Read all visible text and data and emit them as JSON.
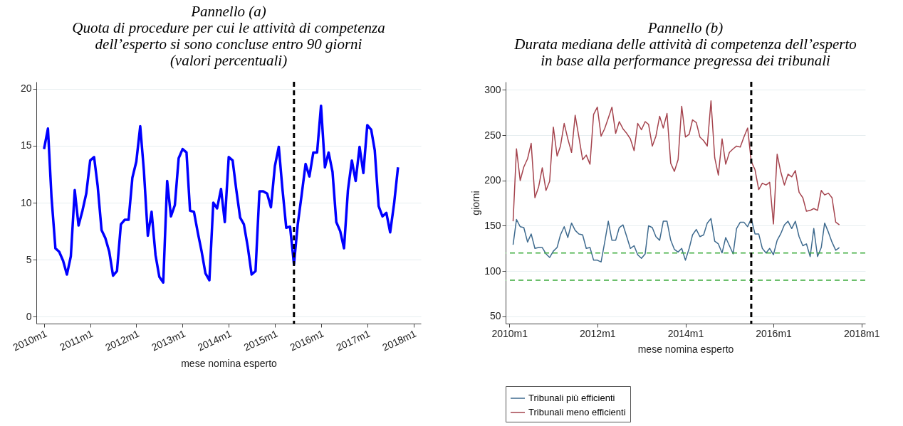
{
  "chart_data": [
    {
      "type": "line",
      "title": "Pannello (a)",
      "subtitle": "Quota di procedure per cui le attività di competenza\ndell’esperto si sono concluse entro 90 giorni\n(valori percentuali)",
      "xlabel": "mese nomina esperto",
      "x": [
        "2010-01",
        "2010-02",
        "2010-03",
        "2010-04",
        "2010-05",
        "2010-06",
        "2010-07",
        "2010-08",
        "2010-09",
        "2010-10",
        "2010-11",
        "2010-12",
        "2011-01",
        "2011-02",
        "2011-03",
        "2011-04",
        "2011-05",
        "2011-06",
        "2011-07",
        "2011-08",
        "2011-09",
        "2011-10",
        "2011-11",
        "2011-12",
        "2012-01",
        "2012-02",
        "2012-03",
        "2012-04",
        "2012-05",
        "2012-06",
        "2012-07",
        "2012-08",
        "2012-09",
        "2012-10",
        "2012-11",
        "2012-12",
        "2013-01",
        "2013-02",
        "2013-03",
        "2013-04",
        "2013-05",
        "2013-06",
        "2013-07",
        "2013-08",
        "2013-09",
        "2013-10",
        "2013-11",
        "2013-12",
        "2014-01",
        "2014-02",
        "2014-03",
        "2014-04",
        "2014-05",
        "2014-06",
        "2014-07",
        "2014-08",
        "2014-09",
        "2014-10",
        "2014-11",
        "2014-12",
        "2015-01",
        "2015-02",
        "2015-03",
        "2015-04",
        "2015-05",
        "2015-06",
        "2015-07",
        "2015-08",
        "2015-09",
        "2015-10",
        "2015-11",
        "2015-12",
        "2016-01",
        "2016-02",
        "2016-03",
        "2016-04",
        "2016-05",
        "2016-06",
        "2016-07",
        "2016-08",
        "2016-09",
        "2016-10",
        "2016-11",
        "2016-12",
        "2017-01",
        "2017-02",
        "2017-03",
        "2017-04",
        "2017-05",
        "2017-06",
        "2017-07",
        "2017-08",
        "2017-09"
      ],
      "series": [
        {
          "color": "#0000ff",
          "values": [
            14.7,
            16.5,
            10.5,
            6.0,
            5.7,
            4.9,
            3.7,
            5.3,
            11.1,
            8.0,
            9.3,
            10.8,
            13.7,
            14.0,
            11.5,
            7.6,
            6.9,
            5.7,
            3.6,
            4.0,
            8.1,
            8.5,
            8.5,
            12.2,
            13.6,
            16.7,
            12.8,
            7.1,
            9.2,
            5.4,
            3.5,
            3.0,
            11.9,
            8.8,
            9.8,
            13.9,
            14.7,
            14.4,
            9.3,
            9.2,
            7.4,
            5.7,
            3.8,
            3.2,
            10.0,
            9.5,
            11.2,
            8.3,
            14.0,
            13.7,
            11.2,
            8.7,
            8.1,
            6.1,
            3.7,
            4.0,
            11.0,
            11.0,
            10.8,
            9.6,
            13.2,
            14.9,
            11.3,
            7.8,
            7.9,
            4.6,
            8.1,
            10.7,
            13.4,
            12.3,
            14.4,
            14.4,
            18.5,
            13.1,
            14.4,
            12.7,
            8.3,
            7.5,
            6.0,
            11.1,
            13.7,
            11.9,
            14.9,
            12.6,
            16.8,
            16.4,
            14.6,
            9.7,
            8.8,
            9.1,
            7.4,
            9.9,
            13.1
          ]
        }
      ],
      "xlim": [
        "2009-11",
        "2018-03"
      ],
      "xticks": [
        {
          "value": "2010-01",
          "label": "2010m1"
        },
        {
          "value": "2011-01",
          "label": "2011m1"
        },
        {
          "value": "2012-01",
          "label": "2012m1"
        },
        {
          "value": "2013-01",
          "label": "2013m1"
        },
        {
          "value": "2014-01",
          "label": "2014m1"
        },
        {
          "value": "2015-01",
          "label": "2015m1"
        },
        {
          "value": "2016-01",
          "label": "2016m1"
        },
        {
          "value": "2017-01",
          "label": "2017m1"
        },
        {
          "value": "2018-01",
          "label": "2018m1"
        }
      ],
      "ylim": [
        -0.6,
        20.6
      ],
      "yticks": [
        0,
        5,
        10,
        15,
        20
      ],
      "grid": "y",
      "ref_lines": [
        {
          "axis": "x",
          "value": "2015-06",
          "color": "#000000",
          "line_style": "dashed"
        }
      ]
    },
    {
      "type": "line",
      "title": "Pannello (b)",
      "subtitle": "Durata mediana delle attività di competenza dell’esperto\nin base alla performance pregressa dei tribunali",
      "xlabel": "mese nomina esperto",
      "ylabel": "giorni",
      "x": [
        "2010-02",
        "2010-03",
        "2010-04",
        "2010-05",
        "2010-06",
        "2010-07",
        "2010-08",
        "2010-09",
        "2010-10",
        "2010-11",
        "2010-12",
        "2011-01",
        "2011-02",
        "2011-03",
        "2011-04",
        "2011-05",
        "2011-06",
        "2011-07",
        "2011-08",
        "2011-09",
        "2011-10",
        "2011-11",
        "2011-12",
        "2012-01",
        "2012-02",
        "2012-03",
        "2012-04",
        "2012-05",
        "2012-06",
        "2012-07",
        "2012-08",
        "2012-09",
        "2012-10",
        "2012-11",
        "2012-12",
        "2013-01",
        "2013-02",
        "2013-03",
        "2013-04",
        "2013-05",
        "2013-06",
        "2013-07",
        "2013-08",
        "2013-09",
        "2013-10",
        "2013-11",
        "2013-12",
        "2014-01",
        "2014-02",
        "2014-03",
        "2014-04",
        "2014-05",
        "2014-06",
        "2014-07",
        "2014-08",
        "2014-09",
        "2014-10",
        "2014-11",
        "2014-12",
        "2015-01",
        "2015-02",
        "2015-03",
        "2015-04",
        "2015-05",
        "2015-06",
        "2015-07",
        "2015-08",
        "2015-09",
        "2015-10",
        "2015-11",
        "2015-12",
        "2016-01",
        "2016-02",
        "2016-03",
        "2016-04",
        "2016-05",
        "2016-06",
        "2016-07",
        "2016-08",
        "2016-09",
        "2016-10",
        "2016-11",
        "2016-12",
        "2017-01",
        "2017-02",
        "2017-03",
        "2017-04",
        "2017-05",
        "2017-06",
        "2017-07"
      ],
      "series": [
        {
          "name": "Tribunali più efficienti",
          "color": "#3e6a8e",
          "values": [
            129,
            157,
            149,
            148,
            132,
            141,
            125,
            126,
            126,
            119,
            115,
            122,
            126,
            140,
            149,
            137,
            153,
            145,
            141,
            140,
            125,
            126,
            112,
            112,
            110,
            131,
            155,
            134,
            134,
            148,
            151,
            138,
            125,
            128,
            118,
            114,
            119,
            150,
            148,
            138,
            134,
            155,
            155,
            134,
            124,
            121,
            125,
            112,
            125,
            140,
            146,
            138,
            140,
            153,
            158,
            133,
            130,
            120,
            137,
            128,
            119,
            147,
            154,
            154,
            149,
            158,
            141,
            141,
            125,
            120,
            125,
            118,
            134,
            141,
            151,
            155,
            147,
            155,
            138,
            128,
            130,
            116,
            147,
            116,
            126,
            153,
            143,
            132,
            123,
            126
          ]
        },
        {
          "name": "Tribunali meno efficienti",
          "color": "#a5444e",
          "values": [
            155,
            235,
            200,
            215,
            224,
            241,
            181,
            193,
            214,
            189,
            199,
            259,
            227,
            238,
            263,
            246,
            231,
            272,
            248,
            223,
            228,
            218,
            273,
            281,
            249,
            257,
            269,
            281,
            252,
            265,
            257,
            252,
            246,
            233,
            263,
            256,
            265,
            262,
            238,
            249,
            271,
            258,
            274,
            219,
            210,
            223,
            282,
            248,
            251,
            267,
            264,
            248,
            244,
            238,
            288,
            225,
            206,
            246,
            218,
            231,
            235,
            238,
            237,
            248,
            258,
            221,
            212,
            190,
            197,
            195,
            198,
            152,
            229,
            210,
            195,
            207,
            204,
            211,
            187,
            181,
            166,
            167,
            169,
            167,
            189,
            184,
            186,
            181,
            154,
            151
          ]
        }
      ],
      "xlim": [
        "2009-12",
        "2018-02"
      ],
      "xticks": [
        {
          "value": "2010-01",
          "label": "2010m1"
        },
        {
          "value": "2012-01",
          "label": "2012m1"
        },
        {
          "value": "2014-01",
          "label": "2014m1"
        },
        {
          "value": "2016-01",
          "label": "2016m1"
        },
        {
          "value": "2018-01",
          "label": "2018m1"
        }
      ],
      "ylim": [
        42,
        309
      ],
      "yticks": [
        50,
        100,
        150,
        200,
        250,
        300
      ],
      "grid": "y",
      "legend": "bottom",
      "ref_lines": [
        {
          "axis": "y",
          "value": 120,
          "color": "#3cab3c",
          "line_style": "dashed"
        },
        {
          "axis": "y",
          "value": 90,
          "color": "#3cab3c",
          "line_style": "dashed"
        },
        {
          "axis": "x",
          "value": "2015-07",
          "color": "#000000",
          "line_style": "dashed"
        }
      ]
    }
  ]
}
